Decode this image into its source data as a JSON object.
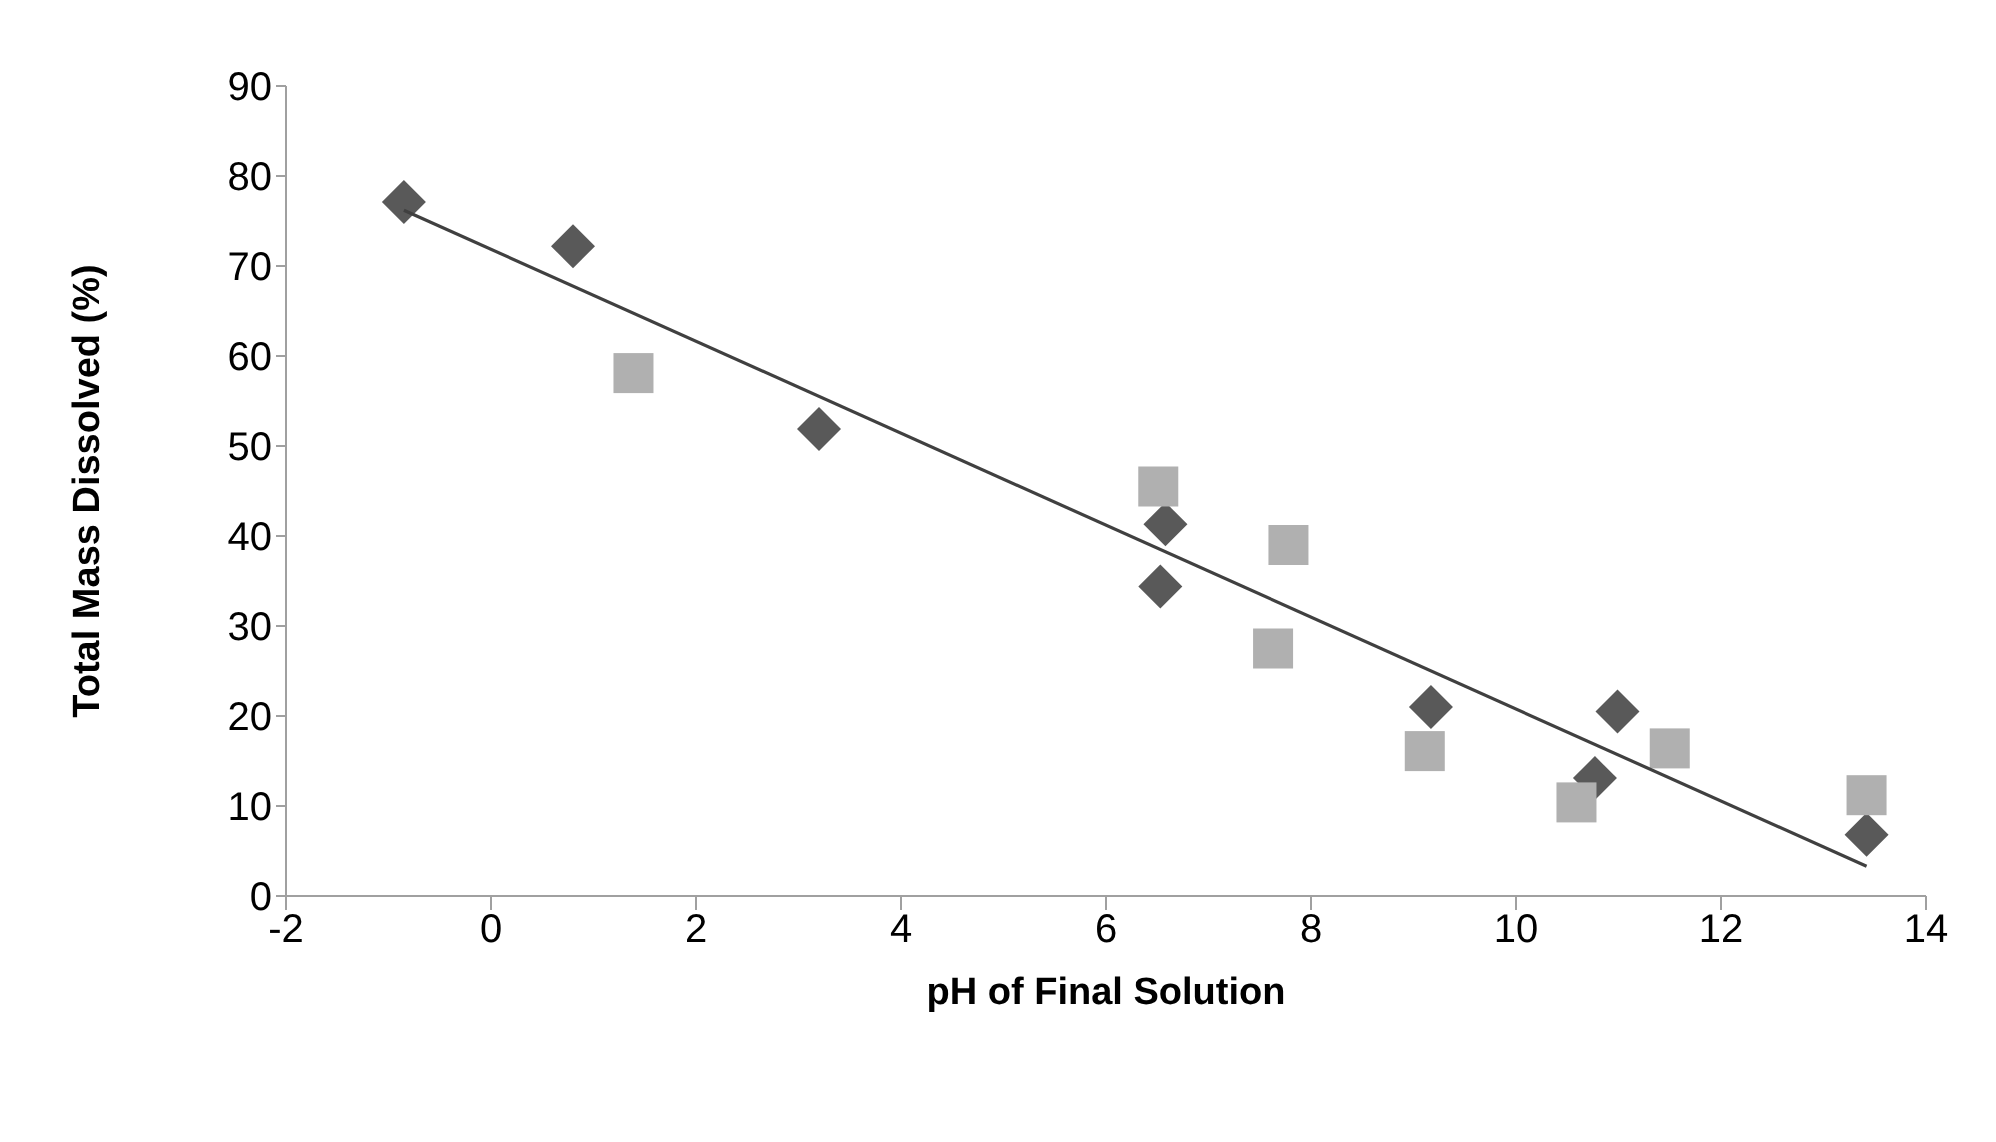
{
  "chart_data": {
    "type": "scatter",
    "xlabel": "pH of Final Solution",
    "ylabel": "Total Mass Dissolved (%)",
    "xlim": [
      -2,
      14
    ],
    "xticks": [
      -2,
      0,
      2,
      4,
      6,
      8,
      10,
      12,
      14
    ],
    "ylim": [
      0,
      90
    ],
    "yticks": [
      0,
      10,
      20,
      30,
      40,
      50,
      60,
      70,
      80,
      90
    ],
    "series": [
      {
        "marker": "diamond",
        "color": "#595959",
        "x": [
          -0.85,
          0.8,
          3.2,
          6.58,
          6.53,
          9.17,
          10.99,
          10.77,
          13.42
        ],
        "values": [
          77.1,
          72.2,
          51.9,
          41.3,
          34.4,
          21.0,
          20.5,
          13.1,
          6.8
        ]
      },
      {
        "marker": "square",
        "color": "#b0b0b0",
        "x": [
          1.39,
          6.51,
          7.78,
          7.63,
          9.11,
          10.59,
          11.5,
          13.42
        ],
        "values": [
          58.1,
          45.5,
          39.0,
          27.5,
          16.1,
          10.4,
          16.4,
          11.2
        ]
      },
      {
        "type": "line",
        "marker": "none",
        "color": "#404040",
        "x": [
          -0.85,
          13.42
        ],
        "values": [
          76.2,
          3.3
        ]
      }
    ]
  }
}
